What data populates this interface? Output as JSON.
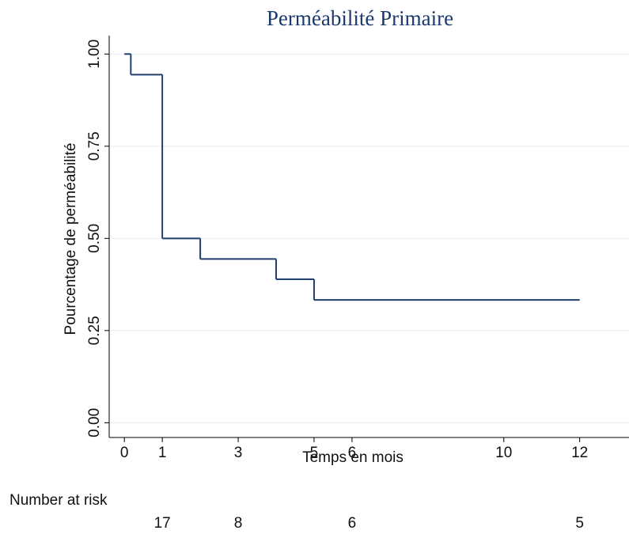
{
  "chart_data": {
    "type": "step",
    "title": "Perméabilité Primaire",
    "x_label": "Temps en mois",
    "y_label": "Pourcentage de perméabilité",
    "x": [
      0,
      0.17,
      1,
      2,
      4,
      5,
      12
    ],
    "values": [
      1,
      0.944,
      0.5,
      0.444,
      0.389,
      0.333,
      0.333
    ],
    "color": "#1f3f6e",
    "xlim": [
      -0.4,
      13.3
    ],
    "ylim": [
      -0.04,
      1.05
    ],
    "xticks": [
      0,
      1,
      3,
      5,
      6,
      10,
      12
    ],
    "yticks": [
      {
        "value": 0,
        "label": "0.00"
      },
      {
        "value": 0.25,
        "label": "0.25"
      },
      {
        "value": 0.5,
        "label": "0.50"
      },
      {
        "value": 0.75,
        "label": "0.75"
      },
      {
        "value": 1,
        "label": "1.00"
      }
    ],
    "grid": true,
    "risk_table": {
      "label": "Number at risk",
      "x": [
        1,
        3,
        6,
        12
      ],
      "values": [
        17,
        8,
        6,
        5
      ]
    }
  }
}
